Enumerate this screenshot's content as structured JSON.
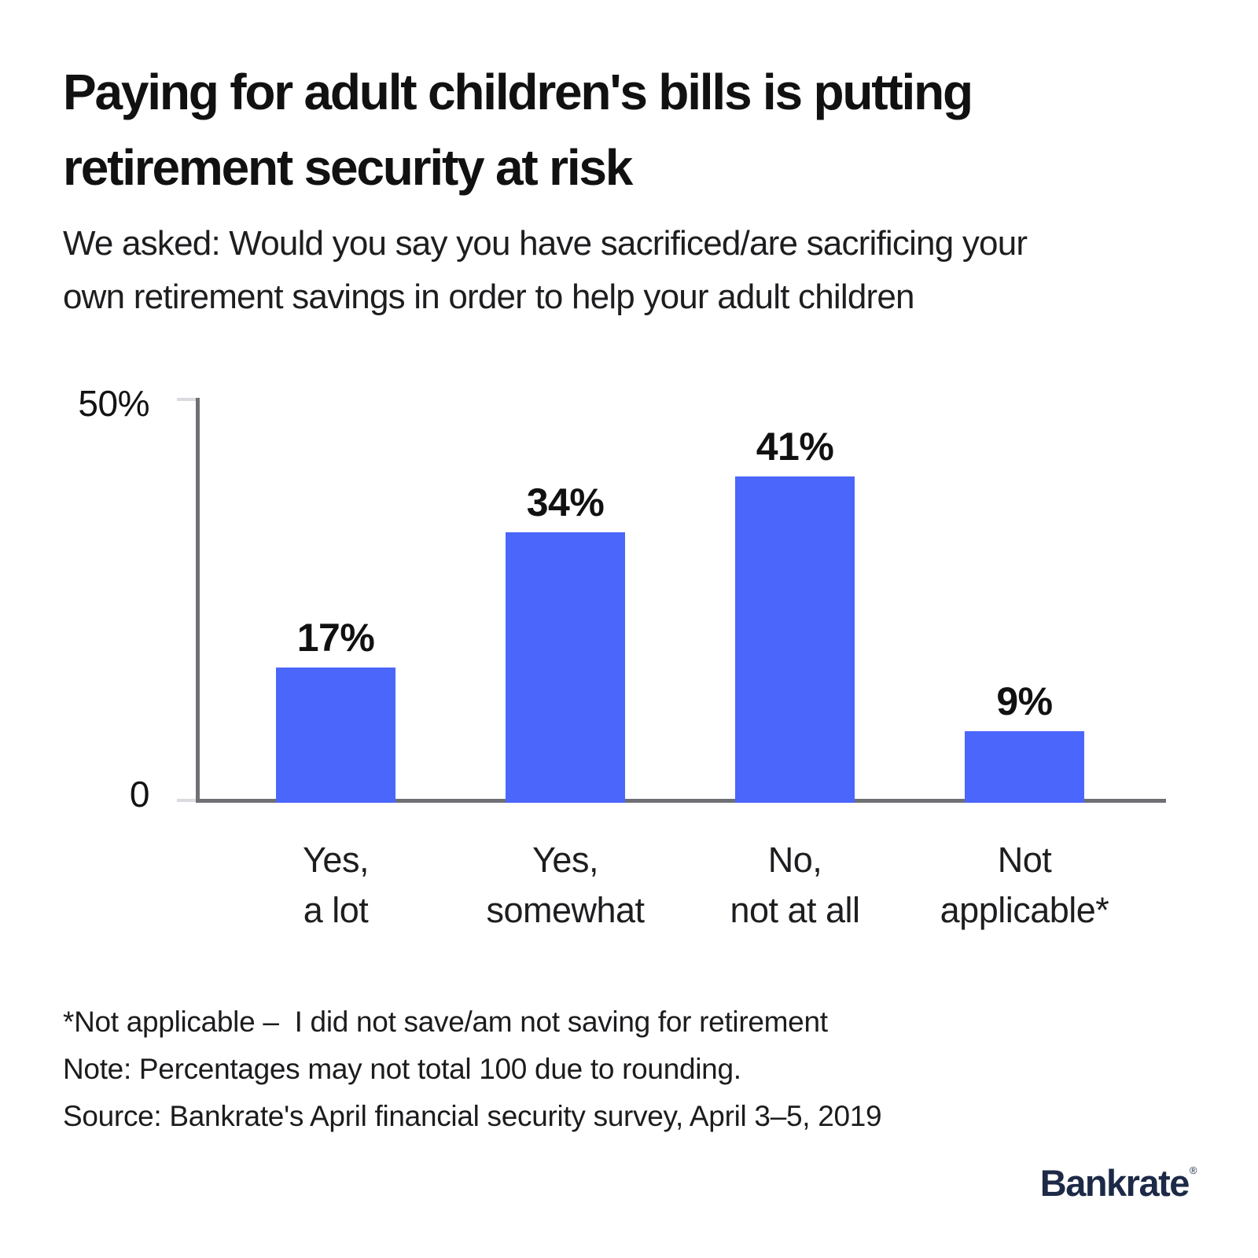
{
  "header": {
    "title_line1": "Paying for adult children's bills is putting",
    "title_line2": "retirement security at risk",
    "subtitle_line1": "We asked: Would you say you have sacrificed/are sacrificing your",
    "subtitle_line2": "own retirement savings in order to help your adult children"
  },
  "chart_data": {
    "type": "bar",
    "title": "Paying for adult children's bills is putting retirement security at risk",
    "subtitle": "We asked: Would you say you have sacrificed/are sacrificing your own retirement savings in order to help your adult children",
    "categories": [
      "Yes, a lot",
      "Yes, somewhat",
      "No, not at all",
      "Not applicable*"
    ],
    "values": [
      17,
      34,
      41,
      9
    ],
    "bars": [
      {
        "label": "17%",
        "category_line1": "Yes,",
        "category_line2": "a lot"
      },
      {
        "label": "34%",
        "category_line1": "Yes,",
        "category_line2": "somewhat"
      },
      {
        "label": "41%",
        "category_line1": "No,",
        "category_line2": "not at all"
      },
      {
        "label": "9%",
        "category_line1": "Not",
        "category_line2": "applicable*"
      }
    ],
    "y_axis": {
      "top_tick_label": "50%",
      "bottom_tick_label": "0",
      "ylim": [
        0,
        50
      ]
    },
    "bar_color": "#4b66fb",
    "grid": false,
    "legend": false
  },
  "footnotes": {
    "line1": "*Not applicable –  I did not save/am not saving for retirement",
    "line2": "Note: Percentages may not total 100 due to rounding.",
    "line3": "Source: Bankrate's April financial security survey, April 3–5, 2019"
  },
  "logo": {
    "text": "Bankrate",
    "mark": "®"
  }
}
